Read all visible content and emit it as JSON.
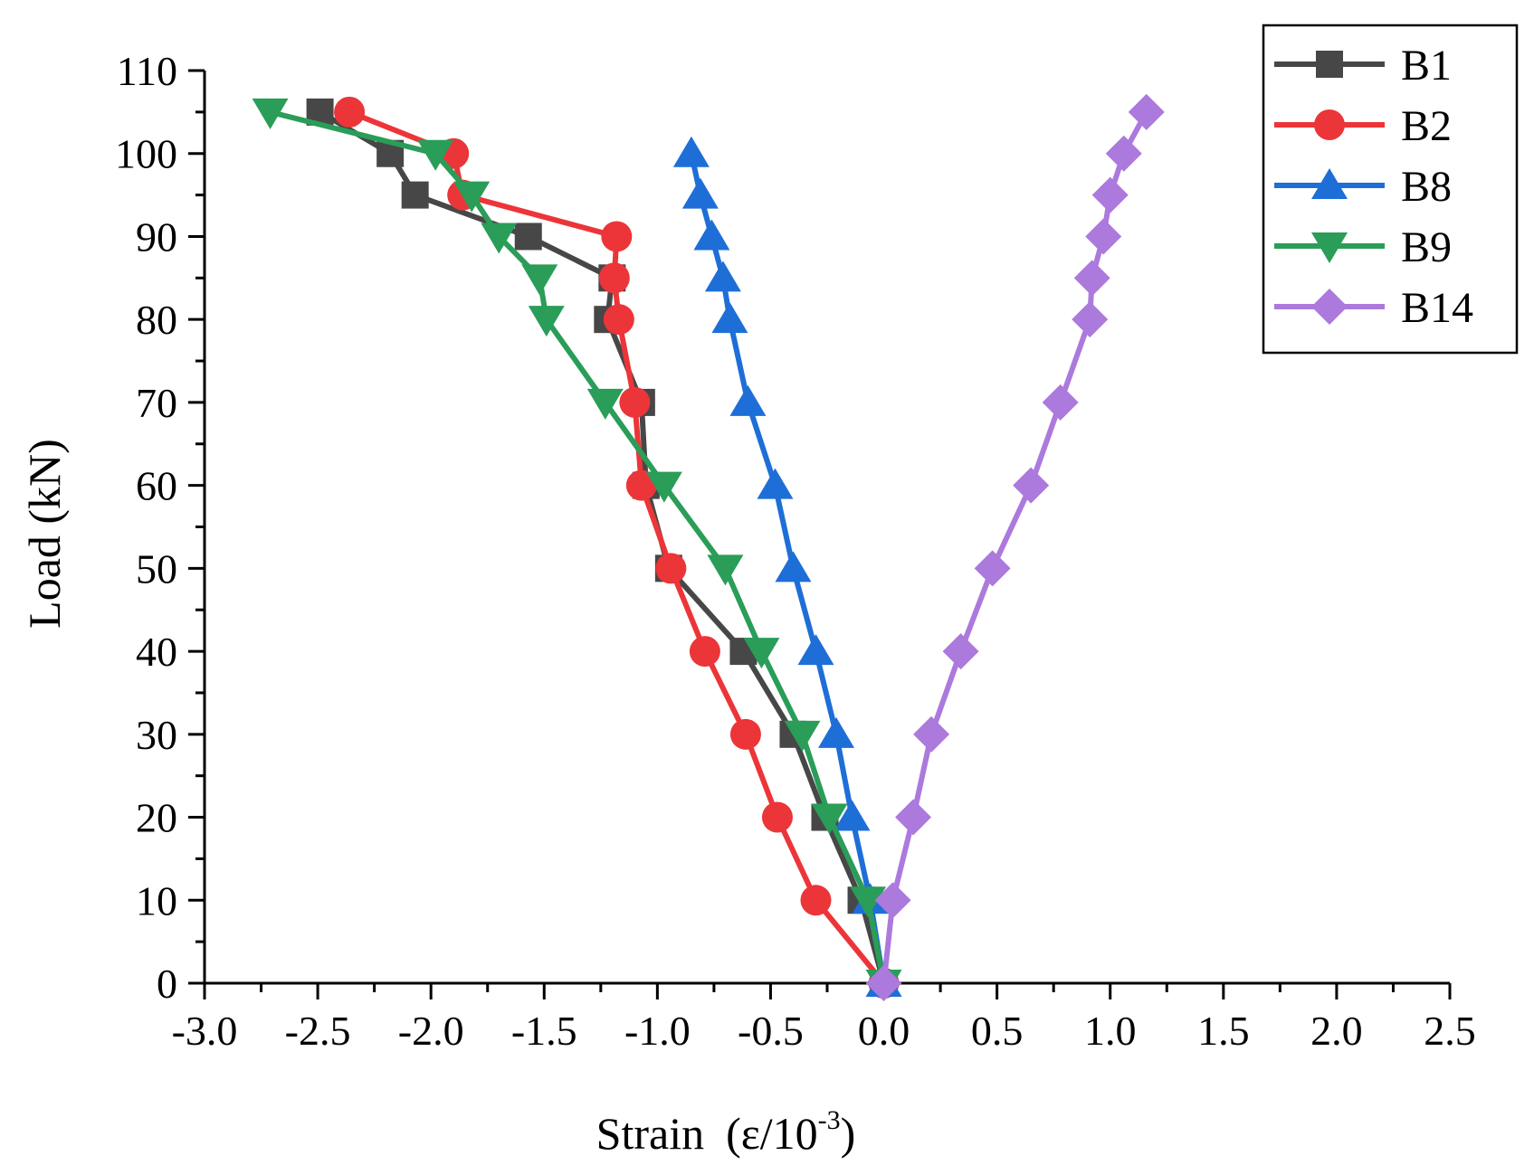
{
  "chart_data": {
    "type": "line",
    "title": "",
    "xlabel": "Strain",
    "xlabel_unit": "(ε/10",
    "xlabel_exp": "-3",
    "xlabel_close": ")",
    "ylabel": "Load (kN)",
    "xlim": [
      -3.0,
      2.5
    ],
    "ylim": [
      0,
      110
    ],
    "xticks": [
      -3.0,
      -2.5,
      -2.0,
      -1.5,
      -1.0,
      -0.5,
      0.0,
      0.5,
      1.0,
      1.5,
      2.0,
      2.5
    ],
    "xtick_labels": [
      "-3.0",
      "-2.5",
      "-2.0",
      "-1.5",
      "-1.0",
      "-0.5",
      "0.0",
      "0.5",
      "1.0",
      "1.5",
      "2.0",
      "2.5"
    ],
    "yticks": [
      0,
      10,
      20,
      30,
      40,
      50,
      60,
      70,
      80,
      90,
      100,
      110
    ],
    "ytick_labels": [
      "0",
      "10",
      "20",
      "30",
      "40",
      "50",
      "60",
      "70",
      "80",
      "90",
      "100",
      "110"
    ],
    "grid": false,
    "legend_position": "top-right",
    "series": [
      {
        "name": "B1",
        "color": "#474747",
        "marker": "square",
        "x": [
          0,
          -0.1,
          -0.26,
          -0.4,
          -0.62,
          -0.95,
          -1.05,
          -1.07,
          -1.22,
          -1.2,
          -1.57,
          -2.07,
          -2.18,
          -2.49
        ],
        "y": [
          0,
          10,
          20,
          30,
          40,
          50,
          60,
          70,
          80,
          85,
          90,
          95,
          100,
          105
        ]
      },
      {
        "name": "B2",
        "color": "#ec3538",
        "marker": "circle",
        "x": [
          0,
          -0.3,
          -0.47,
          -0.61,
          -0.79,
          -0.94,
          -1.07,
          -1.1,
          -1.17,
          -1.19,
          -1.18,
          -1.86,
          -1.9,
          -2.36
        ],
        "y": [
          0,
          10,
          20,
          30,
          40,
          50,
          60,
          70,
          80,
          85,
          90,
          95,
          100,
          105
        ]
      },
      {
        "name": "B8",
        "color": "#1e6ed8",
        "marker": "triangle-up",
        "x": [
          0,
          -0.06,
          -0.14,
          -0.21,
          -0.3,
          -0.4,
          -0.48,
          -0.6,
          -0.68,
          -0.71,
          -0.76,
          -0.81,
          -0.85
        ],
        "y": [
          0,
          10,
          20,
          30,
          40,
          50,
          60,
          70,
          80,
          85,
          90,
          95,
          100
        ]
      },
      {
        "name": "B9",
        "color": "#2a9d58",
        "marker": "triangle-down",
        "x": [
          0,
          -0.07,
          -0.24,
          -0.36,
          -0.54,
          -0.7,
          -0.97,
          -1.23,
          -1.49,
          -1.52,
          -1.7,
          -1.82,
          -1.98,
          -2.71
        ],
        "y": [
          0,
          10,
          20,
          30,
          40,
          50,
          60,
          70,
          80,
          85,
          90,
          95,
          100,
          105
        ]
      },
      {
        "name": "B14",
        "color": "#ac79dd",
        "marker": "diamond",
        "x": [
          0,
          0.04,
          0.13,
          0.21,
          0.34,
          0.48,
          0.65,
          0.78,
          0.91,
          0.92,
          0.97,
          1.0,
          1.06,
          1.16
        ],
        "y": [
          0,
          10,
          20,
          30,
          40,
          50,
          60,
          70,
          80,
          85,
          90,
          95,
          100,
          105
        ]
      }
    ]
  }
}
